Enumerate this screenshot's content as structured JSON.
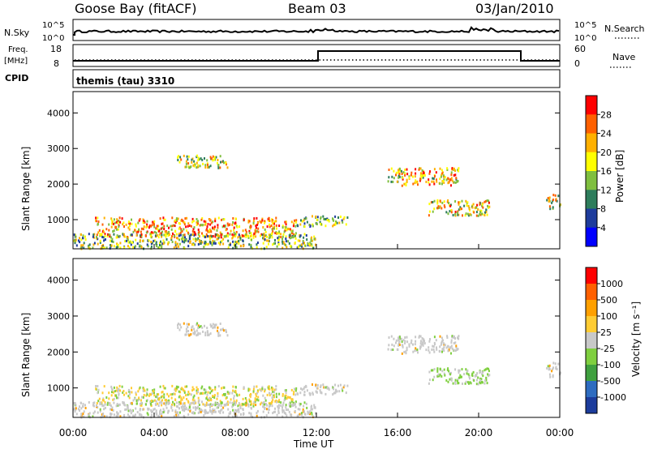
{
  "header": {
    "station": "Goose Bay (fitACF)",
    "beam": "Beam 03",
    "date": "03/Jan/2010"
  },
  "top_panels": {
    "nsky_label": "N.Sky",
    "nsearch_label": "N.Search",
    "nsky_ticks": [
      "10^5",
      "10^0"
    ],
    "freq_label_1": "Freq.",
    "freq_label_2": "[MHz]",
    "freq_ticks": [
      "18",
      "8"
    ],
    "nave_label": "Nave",
    "nave_ticks": [
      "60",
      "0"
    ],
    "cpid_label": "CPID",
    "cpid_value": "themis (tau) 3310"
  },
  "colorbars": {
    "power": {
      "label": "Power [dB]",
      "ticks": [
        "28",
        "24",
        "20",
        "16",
        "12",
        "8",
        "4"
      ],
      "colors": [
        "#0000ff",
        "#1e3c9c",
        "#2e7d5c",
        "#7fbf3f",
        "#ffff00",
        "#ffb000",
        "#ff6000",
        "#ff0000"
      ]
    },
    "velocity": {
      "label": "Velocity [m s⁻¹]",
      "ticks": [
        "1000",
        "500",
        "100",
        "25",
        "-25",
        "-100",
        "-500",
        "-1000"
      ],
      "colors": [
        "#ff0000",
        "#ff6000",
        "#ffa000",
        "#ffcc33",
        "#c8c8c8",
        "#7fcf3f",
        "#3fa03f",
        "#2e6cc0",
        "#1c3c9c"
      ]
    }
  },
  "chart_data": [
    {
      "type": "heatmap",
      "name": "power",
      "ylabel": "Slant Range [km]",
      "yticks": [
        1000,
        2000,
        3000,
        4000
      ],
      "ylim": [
        180,
        4600
      ],
      "x_unit_hours": [
        0,
        24
      ],
      "echo_regions": [
        {
          "t0": 5.0,
          "t1": 7.6,
          "r0": 2450,
          "r1": 2800,
          "level": 0.55
        },
        {
          "t0": 15.5,
          "t1": 19.0,
          "r0": 1950,
          "r1": 2450,
          "level": 0.65
        },
        {
          "t0": 17.5,
          "t1": 20.5,
          "r0": 1100,
          "r1": 1550,
          "level": 0.6
        },
        {
          "t0": 1.0,
          "t1": 11.0,
          "r0": 500,
          "r1": 1050,
          "level": 0.7
        },
        {
          "t0": 0.0,
          "t1": 12.0,
          "r0": 180,
          "r1": 600,
          "level": 0.45
        },
        {
          "t0": 11.0,
          "t1": 13.5,
          "r0": 800,
          "r1": 1100,
          "level": 0.4
        },
        {
          "t0": 23.3,
          "t1": 24.0,
          "r0": 1300,
          "r1": 1700,
          "level": 0.55
        }
      ]
    },
    {
      "type": "heatmap",
      "name": "velocity",
      "ylabel": "Slant Range [km]",
      "yticks": [
        1000,
        2000,
        3000,
        4000
      ],
      "ylim": [
        180,
        4600
      ],
      "x_unit_hours": [
        0,
        24
      ]
    }
  ],
  "xaxis": {
    "label": "Time UT",
    "ticks": [
      "00:00",
      "04:00",
      "08:00",
      "12:00",
      "16:00",
      "20:00",
      "00:00"
    ]
  }
}
